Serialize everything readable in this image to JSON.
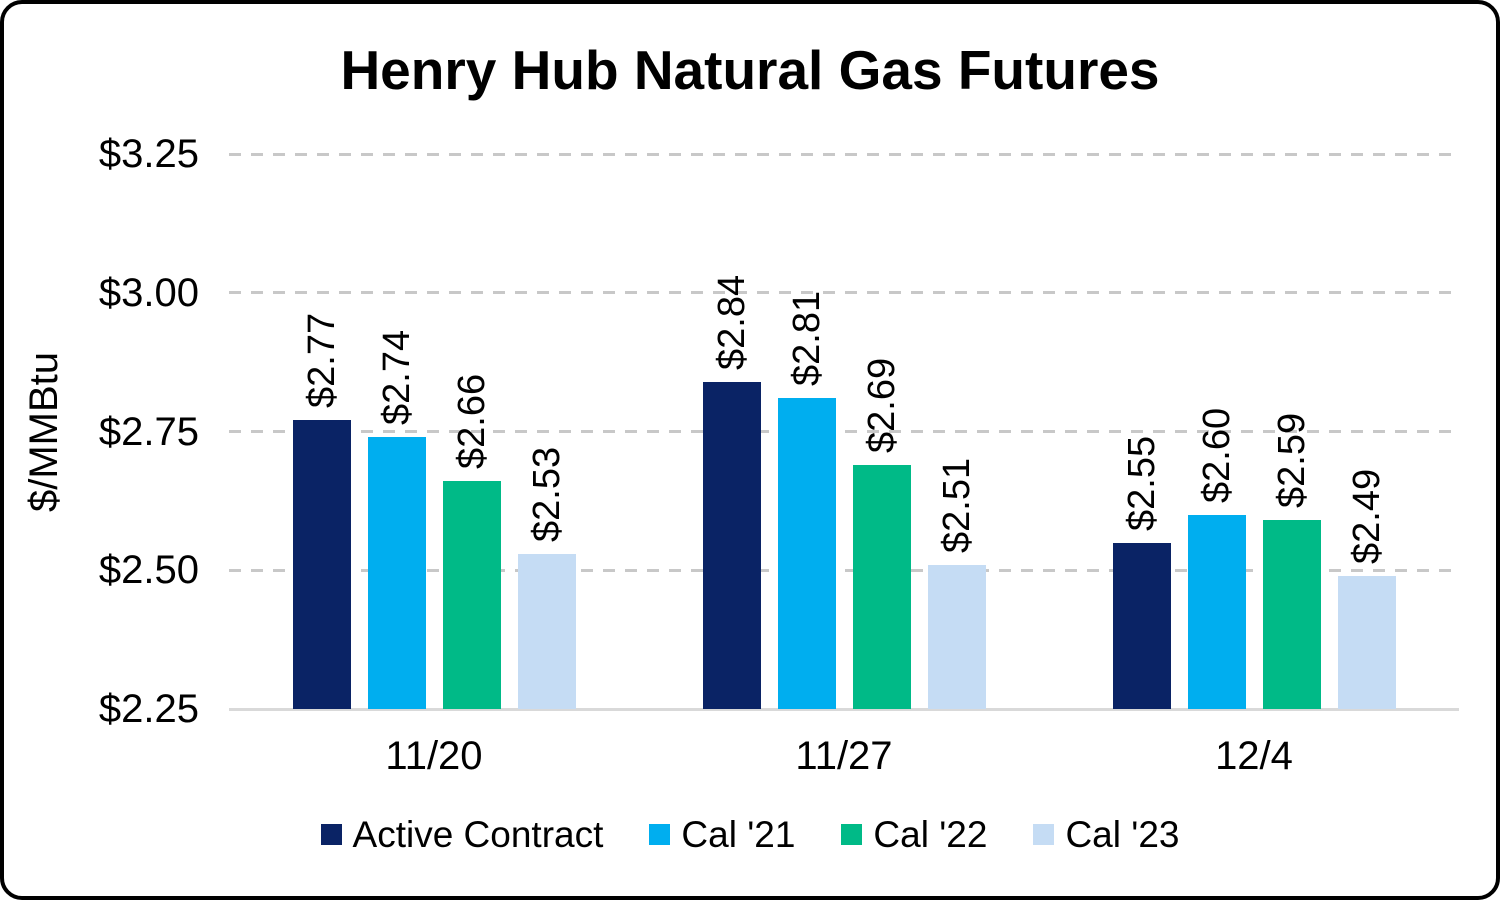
{
  "page": {
    "background": "#FFFFFF",
    "border_color": "#000000"
  },
  "chart_data": {
    "type": "bar",
    "title": "Henry Hub Natural Gas Futures",
    "ylabel": "$/MMBtu",
    "xlabel": "",
    "categories": [
      "11/20",
      "11/27",
      "12/4"
    ],
    "series": [
      {
        "name": "Active Contract",
        "color": "#0A2365",
        "values": [
          2.77,
          2.84,
          2.55
        ],
        "labels": [
          "$2.77",
          "$2.84",
          "$2.55"
        ]
      },
      {
        "name": "Cal '21",
        "color": "#00AEEF",
        "values": [
          2.74,
          2.81,
          2.6
        ],
        "labels": [
          "$2.74",
          "$2.81",
          "$2.60"
        ]
      },
      {
        "name": "Cal '22",
        "color": "#00BA87",
        "values": [
          2.66,
          2.69,
          2.59
        ],
        "labels": [
          "$2.66",
          "$2.69",
          "$2.59"
        ]
      },
      {
        "name": "Cal '23",
        "color": "#C5DCF4",
        "values": [
          2.53,
          2.51,
          2.49
        ],
        "labels": [
          "$2.53",
          "$2.51",
          "$2.49"
        ]
      }
    ],
    "y_ticks": [
      {
        "value": 3.25,
        "label": "$3.25"
      },
      {
        "value": 3.0,
        "label": "$3.00"
      },
      {
        "value": 2.75,
        "label": "$2.75"
      },
      {
        "value": 2.5,
        "label": "$2.50"
      },
      {
        "value": 2.25,
        "label": "$2.25"
      }
    ],
    "ylim": [
      2.25,
      3.25
    ],
    "grid": true,
    "gridline_style": "dashed",
    "legend_position": "bottom",
    "colors": {
      "gridline": "#C8C8C8",
      "axis_line": "#D9D9D9",
      "text": "#000000"
    }
  }
}
